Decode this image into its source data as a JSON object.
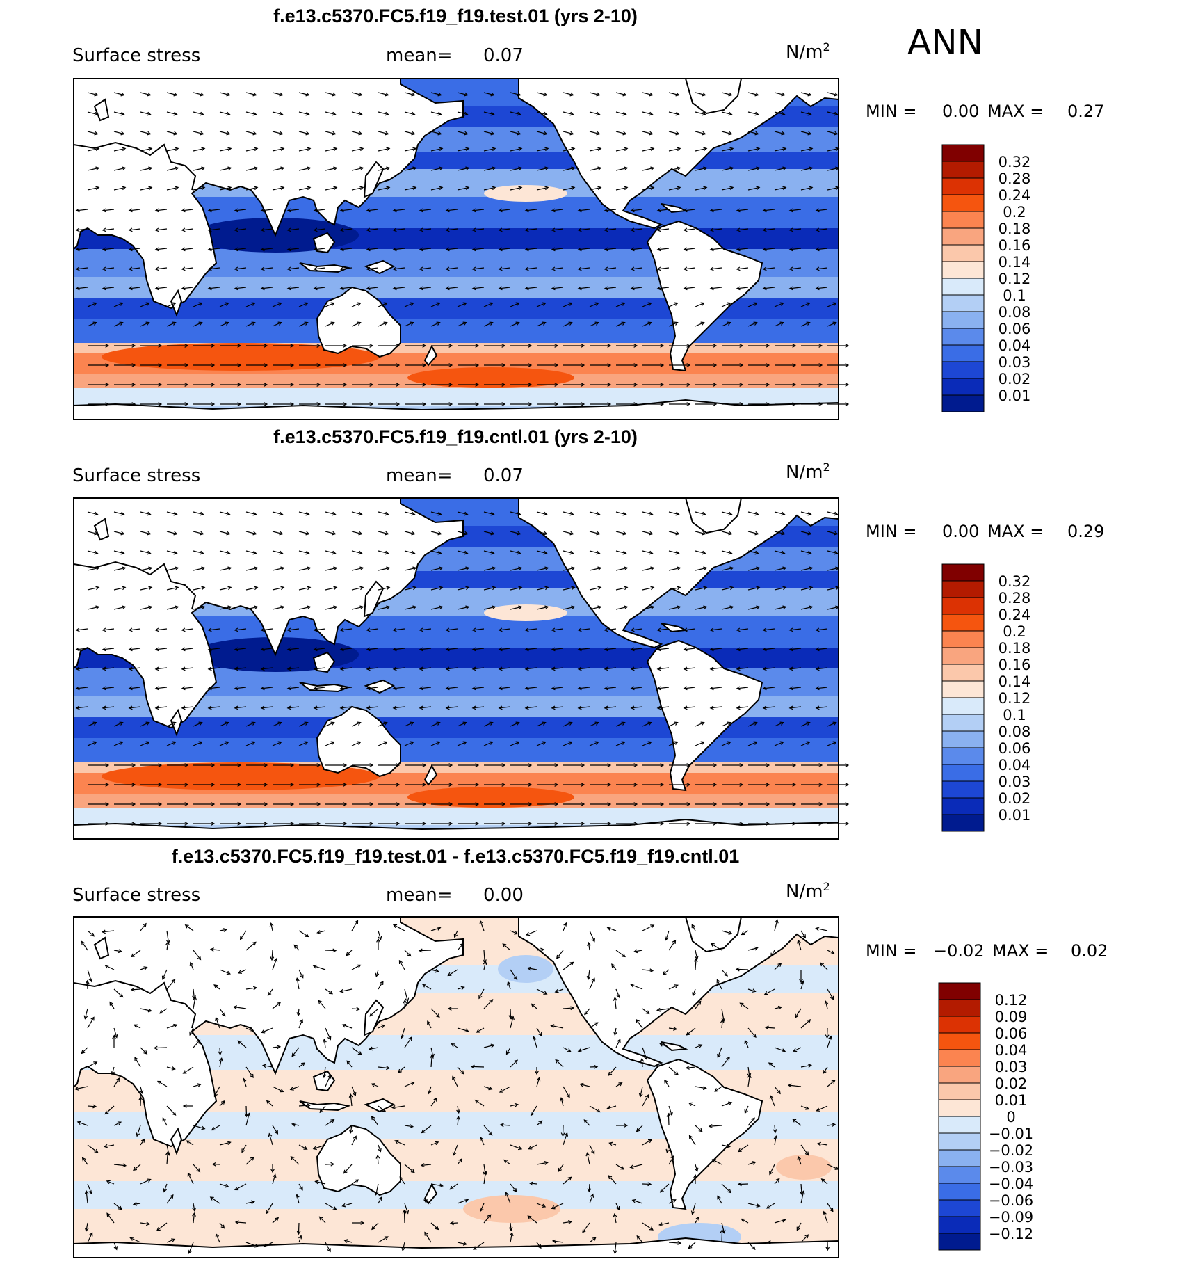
{
  "season": "ANN",
  "panels": [
    {
      "title": "f.e13.c5370.FC5.f19_f19.test.01 (yrs 2-10)",
      "variable": "Surface stress",
      "mean_label": "mean=",
      "mean_value": "0.07",
      "units": "N/m",
      "units_exp": "2",
      "min_label": "MIN =",
      "min_value": "0.00",
      "max_label": "MAX =",
      "max_value": "0.27",
      "colorbar": {
        "labels": [
          "0.32",
          "0.28",
          "0.24",
          "0.2",
          "0.18",
          "0.16",
          "0.14",
          "0.12",
          "0.1",
          "0.08",
          "0.06",
          "0.04",
          "0.03",
          "0.02",
          "0.01"
        ],
        "colors": [
          "#800000",
          "#b31b00",
          "#dc3203",
          "#f5550f",
          "#fb8450",
          "#f9a57f",
          "#fbc8ab",
          "#fde6d6",
          "#d9eafa",
          "#b3cff5",
          "#8ab1f0",
          "#5b8aeb",
          "#3a6de6",
          "#1d47d4",
          "#0a2bb8",
          "#001b8f"
        ]
      },
      "map_field": "full"
    },
    {
      "title": "f.e13.c5370.FC5.f19_f19.cntl.01 (yrs 2-10)",
      "variable": "Surface stress",
      "mean_label": "mean=",
      "mean_value": "0.07",
      "units": "N/m",
      "units_exp": "2",
      "min_label": "MIN =",
      "min_value": "0.00",
      "max_label": "MAX =",
      "max_value": "0.29",
      "colorbar": {
        "labels": [
          "0.32",
          "0.28",
          "0.24",
          "0.2",
          "0.18",
          "0.16",
          "0.14",
          "0.12",
          "0.1",
          "0.08",
          "0.06",
          "0.04",
          "0.03",
          "0.02",
          "0.01"
        ],
        "colors": [
          "#800000",
          "#b31b00",
          "#dc3203",
          "#f5550f",
          "#fb8450",
          "#f9a57f",
          "#fbc8ab",
          "#fde6d6",
          "#d9eafa",
          "#b3cff5",
          "#8ab1f0",
          "#5b8aeb",
          "#3a6de6",
          "#1d47d4",
          "#0a2bb8",
          "#001b8f"
        ]
      },
      "map_field": "full"
    },
    {
      "title": "f.e13.c5370.FC5.f19_f19.test.01 - f.e13.c5370.FC5.f19_f19.cntl.01",
      "variable": "Surface stress",
      "mean_label": "mean=",
      "mean_value": "0.00",
      "units": "N/m",
      "units_exp": "2",
      "min_label": "MIN =",
      "min_value": "−0.02",
      "max_label": "MAX =",
      "max_value": "0.02",
      "colorbar": {
        "labels": [
          "0.12",
          "0.09",
          "0.06",
          "0.04",
          "0.03",
          "0.02",
          "0.01",
          "0",
          "−0.01",
          "−0.02",
          "−0.03",
          "−0.04",
          "−0.06",
          "−0.09",
          "−0.12"
        ],
        "colors": [
          "#800000",
          "#b31b00",
          "#dc3203",
          "#f5550f",
          "#fb8450",
          "#f9a57f",
          "#fbc8ab",
          "#fde6d6",
          "#d9eafa",
          "#b3cff5",
          "#8ab1f0",
          "#5b8aeb",
          "#3a6de6",
          "#1d47d4",
          "#0a2bb8",
          "#001b8f"
        ]
      },
      "map_field": "difference"
    }
  ]
}
